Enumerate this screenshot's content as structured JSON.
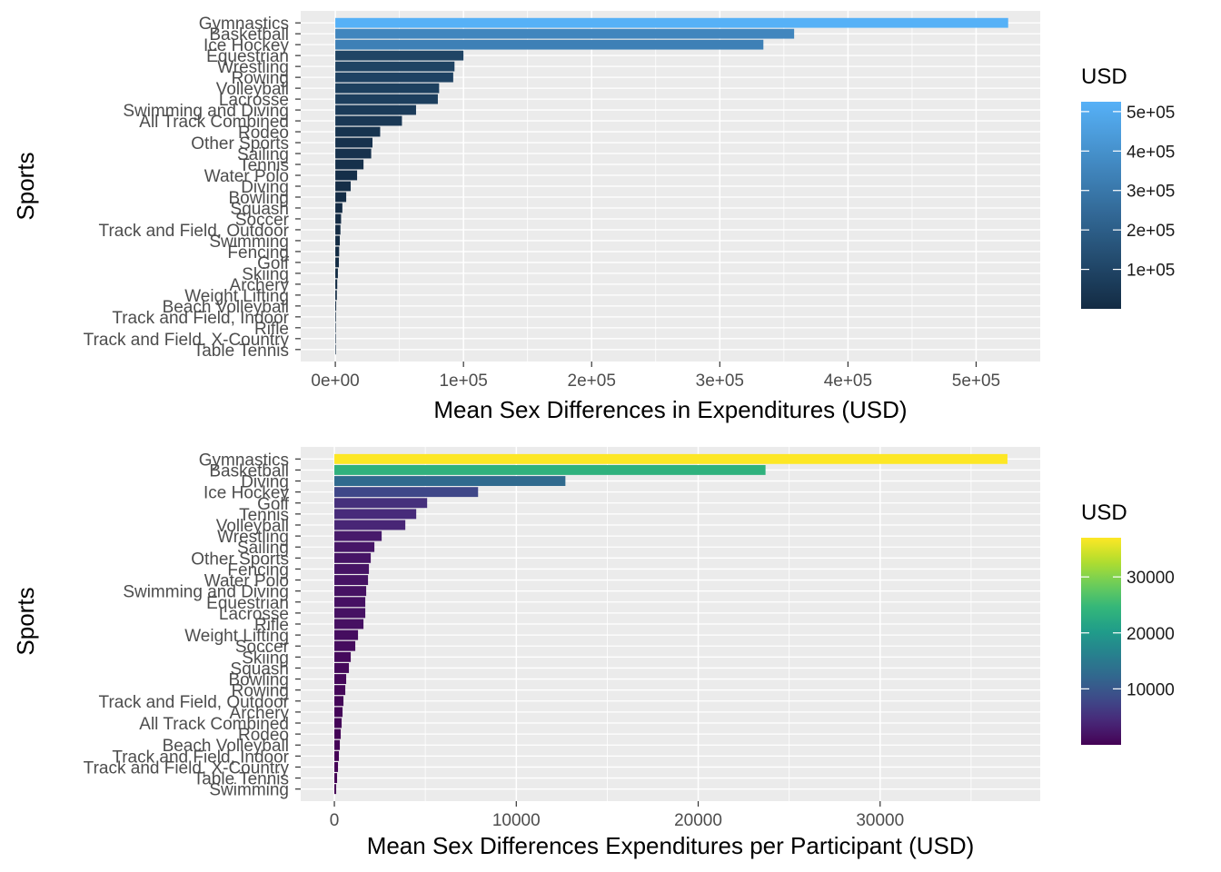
{
  "chart_data": [
    {
      "type": "bar",
      "orientation": "horizontal",
      "xlabel": "Mean Sex Differences in Expenditures (USD)",
      "ylabel": "Sports",
      "xlim": [
        -27000,
        550000
      ],
      "x_ticks": [
        0,
        100000,
        200000,
        300000,
        400000,
        500000
      ],
      "x_tick_labels": [
        "0e+00",
        "1e+05",
        "2e+05",
        "3e+05",
        "4e+05",
        "5e+05"
      ],
      "grid": true,
      "legend": {
        "title": "USD",
        "placement": "right",
        "colors": [
          "#132B43",
          "#56B1F7"
        ],
        "range": [
          0,
          525000
        ],
        "ticks": [
          100000,
          200000,
          300000,
          400000,
          500000
        ],
        "tick_labels": [
          "1e+05",
          "2e+05",
          "3e+05",
          "4e+05",
          "5e+05"
        ]
      },
      "categories": [
        "Gymnastics",
        "Basketball",
        "Ice Hockey",
        "Equestrian",
        "Wrestling",
        "Rowing",
        "Volleyball",
        "Lacrosse",
        "Swimming and Diving",
        "All Track Combined",
        "Rodeo",
        "Other Sports",
        "Sailing",
        "Tennis",
        "Water Polo",
        "Diving",
        "Bowling",
        "Squash",
        "Soccer",
        "Track and Field, Outdoor",
        "Swimming",
        "Fencing",
        "Golf",
        "Skiing",
        "Archery",
        "Weight Lifting",
        "Beach Volleyball",
        "Track and Field, Indoor",
        "Rifle",
        "Track and Field, X-Country",
        "Table Tennis"
      ],
      "values": [
        525000,
        358000,
        334000,
        100000,
        93000,
        92000,
        81000,
        80000,
        63000,
        52000,
        35000,
        29000,
        28000,
        22000,
        17000,
        12000,
        8500,
        5500,
        4500,
        4000,
        3500,
        3000,
        2800,
        2000,
        1500,
        1200,
        700,
        500,
        400,
        300,
        200
      ]
    },
    {
      "type": "bar",
      "orientation": "horizontal",
      "xlabel": "Mean Sex Differences Expenditures per Participant (USD)",
      "ylabel": "Sports",
      "xlim": [
        -1850,
        38800
      ],
      "x_ticks": [
        0,
        10000,
        20000,
        30000
      ],
      "x_tick_labels": [
        "0",
        "10000",
        "20000",
        "30000"
      ],
      "grid": true,
      "legend": {
        "title": "USD",
        "placement": "right",
        "colors": [
          "#440154",
          "#482878",
          "#3E4A89",
          "#31688E",
          "#26828E",
          "#1F9E89",
          "#35B779",
          "#6DCD59",
          "#B4DE2C",
          "#FDE725"
        ],
        "range": [
          0,
          37000
        ],
        "ticks": [
          10000,
          20000,
          30000
        ],
        "tick_labels": [
          "10000",
          "20000",
          "30000"
        ]
      },
      "categories": [
        "Gymnastics",
        "Basketball",
        "Diving",
        "Ice Hockey",
        "Golf",
        "Tennis",
        "Volleyball",
        "Wrestling",
        "Sailing",
        "Other Sports",
        "Fencing",
        "Water Polo",
        "Swimming and Diving",
        "Equestrian",
        "Lacrosse",
        "Rifle",
        "Weight Lifting",
        "Soccer",
        "Skiing",
        "Squash",
        "Bowling",
        "Rowing",
        "Track and Field, Outdoor",
        "Archery",
        "All Track Combined",
        "Rodeo",
        "Beach Volleyball",
        "Track and Field, Indoor",
        "Track and Field, X-Country",
        "Table Tennis",
        "Swimming"
      ],
      "values": [
        37000,
        23700,
        12700,
        7900,
        5100,
        4500,
        3900,
        2600,
        2200,
        2000,
        1900,
        1850,
        1750,
        1700,
        1700,
        1600,
        1300,
        1150,
        900,
        800,
        650,
        600,
        500,
        450,
        400,
        350,
        300,
        250,
        200,
        150,
        100
      ]
    }
  ]
}
